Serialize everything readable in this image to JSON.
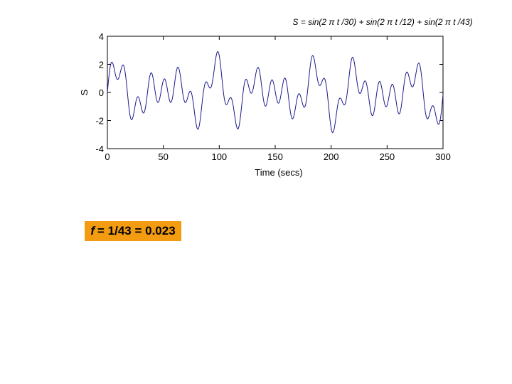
{
  "chart_data": {
    "type": "line",
    "title": "S = sin(2 π t /30) + sin(2 π t /12) + sin(2 π t /43)",
    "xlabel": "Time (secs)",
    "ylabel": "S",
    "xlim": [
      0,
      300
    ],
    "ylim": [
      -4,
      4
    ],
    "xticks": [
      0,
      50,
      100,
      150,
      200,
      250,
      300
    ],
    "yticks": [
      -4,
      -2,
      0,
      2,
      4
    ],
    "xtick_labels": [
      "0",
      "50",
      "100",
      "150",
      "200",
      "250",
      "300"
    ],
    "ytick_labels": [
      "-4",
      "-2",
      "0",
      "2",
      "4"
    ],
    "grid": false,
    "series": [
      {
        "periods": [
          30,
          12,
          43
        ],
        "x_range": [
          0,
          300
        ],
        "color": "#1a1a8c"
      }
    ]
  },
  "formula": {
    "variable": "f",
    "text": "= 1/43 = 0.023"
  }
}
